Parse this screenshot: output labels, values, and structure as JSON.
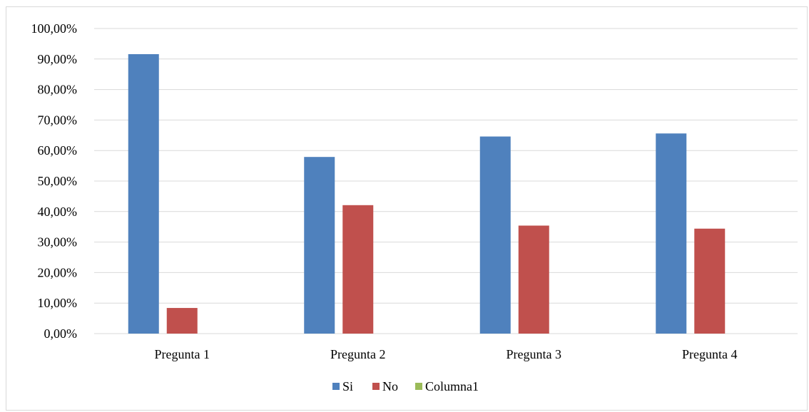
{
  "chart_data": {
    "type": "bar",
    "title": "",
    "xlabel": "",
    "ylabel": "",
    "categories": [
      "Pregunta 1",
      "Pregunta 2",
      "Pregunta 3",
      "Pregunta 4"
    ],
    "series": [
      {
        "name": "Si",
        "color": "#4f81bd",
        "values": [
          91.6,
          57.9,
          64.6,
          65.6
        ]
      },
      {
        "name": "No",
        "color": "#c0504d",
        "values": [
          8.4,
          42.1,
          35.4,
          34.4
        ]
      },
      {
        "name": "Columna1",
        "color": "#9bbb59",
        "values": [
          0,
          0,
          0,
          0
        ]
      }
    ],
    "ylim": [
      0,
      100
    ],
    "y_ticks": [
      0,
      10,
      20,
      30,
      40,
      50,
      60,
      70,
      80,
      90,
      100
    ],
    "y_tick_labels": [
      "0,00%",
      "10,00%",
      "20,00%",
      "30,00%",
      "40,00%",
      "50,00%",
      "60,00%",
      "70,00%",
      "80,00%",
      "90,00%",
      "100,00%"
    ],
    "grid": true,
    "legend_position": "bottom",
    "gridline_color": "#d9d9d9"
  }
}
